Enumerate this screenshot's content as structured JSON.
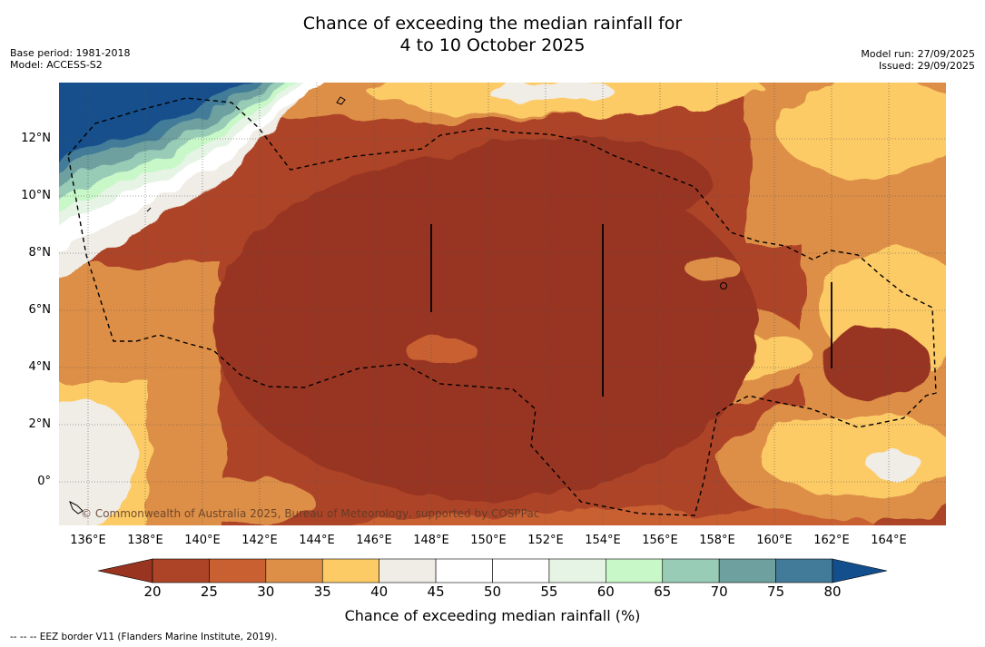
{
  "title_line1": "Chance of exceeding the median rainfall for",
  "title_line2": "4 to 10 October 2025",
  "base_period": "Base period: 1981-2018",
  "model": "Model: ACCESS-S2",
  "model_run": "Model run: 27/09/2025",
  "issued": "Issued: 29/09/2025",
  "copyright": "© Commonwealth of Australia 2025, Bureau of Meteorology, supported by COSPPac",
  "lat_labels": [
    "12°N",
    "10°N",
    "8°N",
    "6°N",
    "4°N",
    "2°N",
    "0°"
  ],
  "lon_labels": [
    "136°E",
    "138°E",
    "140°E",
    "142°E",
    "144°E",
    "146°E",
    "148°E",
    "150°E",
    "152°E",
    "154°E",
    "156°E",
    "158°E",
    "160°E",
    "162°E",
    "164°E"
  ],
  "colorbar": {
    "title": "Chance of exceeding median rainfall (%)",
    "ticks": [
      "20",
      "25",
      "30",
      "35",
      "40",
      "45",
      "50",
      "55",
      "60",
      "65",
      "70",
      "75",
      "80"
    ],
    "under_color": "#983420",
    "over_color": "#134f8c",
    "colors": [
      "#ad4427",
      "#c96032",
      "#de8f47",
      "#fccb66",
      "#f0ece6",
      "#ffffff",
      "#ffffff",
      "#e6f4e5",
      "#c8f7c8",
      "#98ccb6",
      "#6da09f",
      "#427b99"
    ]
  },
  "footer": "--  --  -- EEZ border V11 (Flanders Marine Institute, 2019)."
}
